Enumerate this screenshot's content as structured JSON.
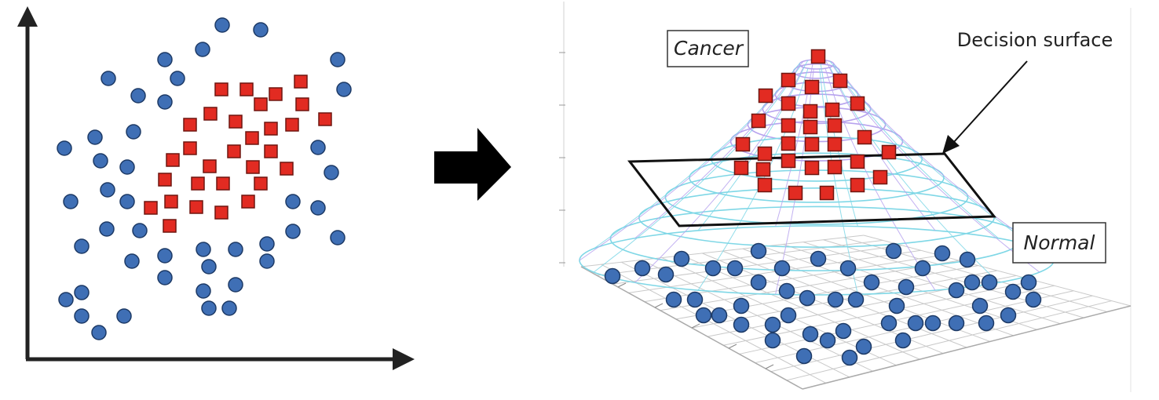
{
  "labels": {
    "cancer": "Cancer",
    "normal": "Normal",
    "decision_surface": "Decision surface"
  },
  "colors": {
    "circle_fill": "#3f6fb5",
    "circle_stroke": "#1d3a66",
    "square_fill": "#e22b22",
    "square_stroke": "#6f1610",
    "axis": "#222222",
    "mesh_purple": "#b7a3ee",
    "mesh_cyan": "#7fd7e6",
    "mesh_grey": "#c9c9c9"
  },
  "icons": {
    "transform_arrow": "right-arrow-icon"
  }
}
